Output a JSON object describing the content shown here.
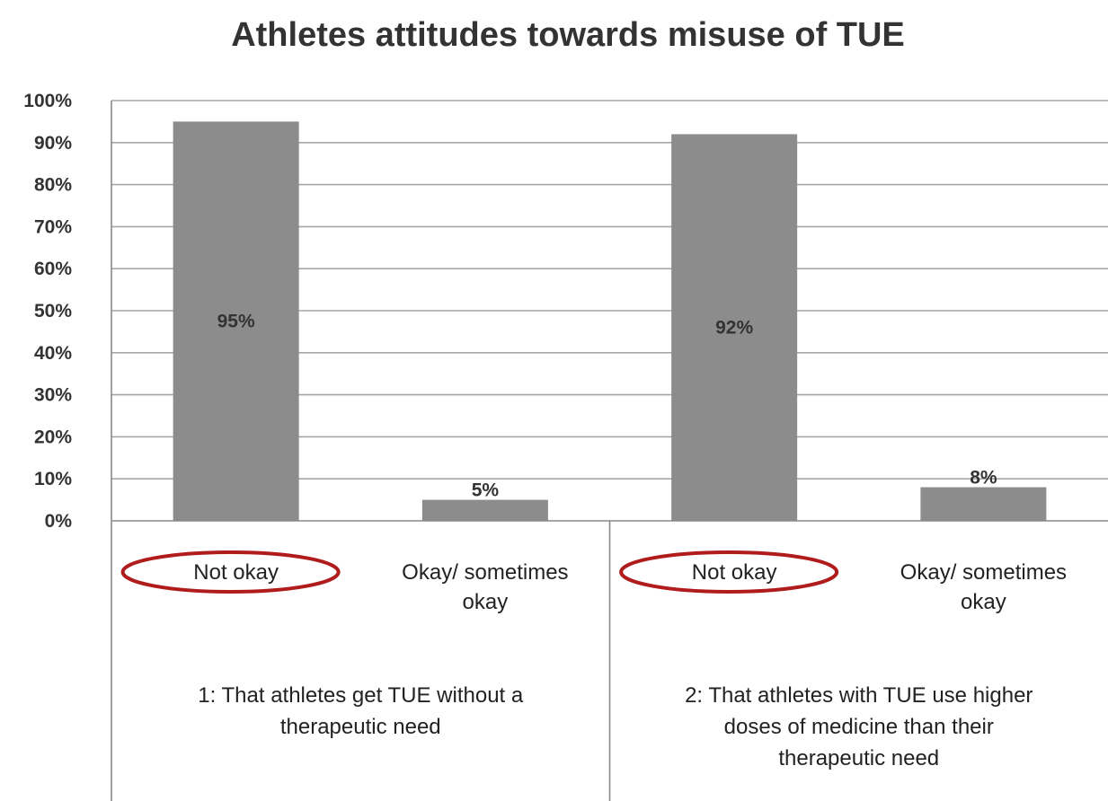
{
  "chart_data": {
    "type": "bar",
    "title": "Athletes attitudes towards misuse of TUE",
    "xlabel": "",
    "ylabel": "",
    "ylim": [
      0,
      100
    ],
    "y_ticks": [
      "0%",
      "10%",
      "20%",
      "30%",
      "40%",
      "50%",
      "60%",
      "70%",
      "80%",
      "90%",
      "100%"
    ],
    "grid": true,
    "legend": "none",
    "colors": {
      "bar": "#8c8c8c",
      "grid": "#a6a6a6",
      "highlight": "#b01c1c"
    },
    "groups": [
      {
        "label": "1: That athletes get TUE without a therapeutic need",
        "bars": [
          {
            "category": "Not okay",
            "value": 95,
            "data_label": "95%",
            "highlighted": true
          },
          {
            "category": "Okay/ sometimes okay",
            "value": 5,
            "data_label": "5%",
            "highlighted": false
          }
        ]
      },
      {
        "label": "2: That athletes with TUE use higher doses of medicine than their therapeutic need",
        "bars": [
          {
            "category": "Not okay",
            "value": 92,
            "data_label": "92%",
            "highlighted": true
          },
          {
            "category": "Okay/ sometimes okay",
            "value": 8,
            "data_label": "8%",
            "highlighted": false
          }
        ]
      }
    ]
  }
}
